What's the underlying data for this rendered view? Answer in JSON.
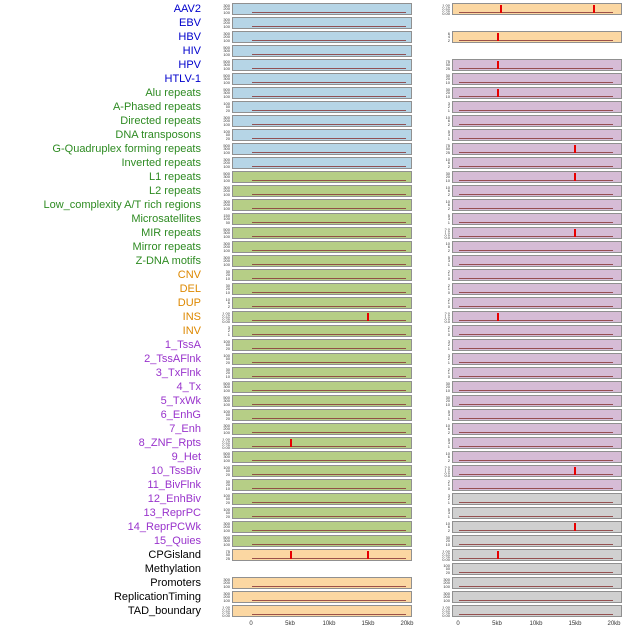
{
  "figure": {
    "label_colors": {
      "virus": "#0000CC",
      "repeat": "#2E8B22",
      "sv": "#DD8800",
      "chromatin": "#9933CC",
      "other": "#000000"
    },
    "panel_colors": {
      "blue": "#B6D5E6",
      "green": "#B6CE86",
      "peach": "#FBD7A2",
      "purple": "#D6BCD6",
      "gray": "#D0D0D0"
    },
    "accent_colors": {
      "peak": "#E80000",
      "baseline": "#8B3A3A"
    }
  },
  "chart_data": {
    "type": "area",
    "title": "",
    "xlabel": "",
    "ylabel": "",
    "x_ticks": [
      "0",
      "5kb",
      "10kb",
      "15kb",
      "20kb"
    ],
    "x_range_kb": [
      0,
      20
    ],
    "columns": [
      "left",
      "right"
    ],
    "legend_position": "none",
    "grid": false,
    "rows": [
      {
        "label": "AAV2",
        "cat": "virus",
        "L": {
          "bg": "blue",
          "ticks": [
            "300",
            "200",
            "100"
          ],
          "spikes": []
        },
        "R": {
          "bg": "peach",
          "ticks": [
            "1.00",
            "0.75",
            "0.50",
            "0.25",
            "0.00"
          ],
          "spikes": [
            5.5,
            17.5
          ]
        }
      },
      {
        "label": "EBV",
        "cat": "virus",
        "L": {
          "bg": "blue",
          "ticks": [
            "300",
            "200",
            "100"
          ],
          "spikes": []
        },
        "R": null
      },
      {
        "label": "HBV",
        "cat": "virus",
        "L": {
          "bg": "blue",
          "ticks": [
            "300",
            "200",
            "100"
          ],
          "spikes": []
        },
        "R": {
          "bg": "peach",
          "ticks": [
            "6",
            "4",
            "2"
          ],
          "spikes": [
            5
          ]
        }
      },
      {
        "label": "HIV",
        "cat": "virus",
        "L": {
          "bg": "blue",
          "ticks": [
            "500",
            "300",
            "100"
          ],
          "spikes": []
        },
        "R": null
      },
      {
        "label": "HPV",
        "cat": "virus",
        "L": {
          "bg": "blue",
          "ticks": [
            "500",
            "300",
            "100"
          ],
          "spikes": []
        },
        "R": {
          "bg": "purple",
          "ticks": [
            "75",
            "50",
            "25"
          ],
          "spikes": [
            5
          ]
        }
      },
      {
        "label": "HTLV-1",
        "cat": "virus",
        "L": {
          "bg": "blue",
          "ticks": [
            "500",
            "300",
            "100"
          ],
          "spikes": []
        },
        "R": {
          "bg": "purple",
          "ticks": [
            "30",
            "20",
            "10"
          ],
          "spikes": []
        }
      },
      {
        "label": "Alu repeats",
        "cat": "repeat",
        "L": {
          "bg": "blue",
          "ticks": [
            "500",
            "300",
            "100"
          ],
          "spikes": []
        },
        "R": {
          "bg": "purple",
          "ticks": [
            "30",
            "20",
            "10"
          ],
          "spikes": [
            5
          ]
        }
      },
      {
        "label": "A-Phased repeats",
        "cat": "repeat",
        "L": {
          "bg": "blue",
          "ticks": [
            "100",
            "60",
            "20"
          ],
          "spikes": []
        },
        "R": {
          "bg": "purple",
          "ticks": [
            "3",
            "2",
            "1"
          ],
          "spikes": []
        }
      },
      {
        "label": "Directed repeats",
        "cat": "repeat",
        "L": {
          "bg": "blue",
          "ticks": [
            "300",
            "200",
            "100"
          ],
          "spikes": []
        },
        "R": {
          "bg": "purple",
          "ticks": [
            "10",
            "6",
            "2"
          ],
          "spikes": []
        }
      },
      {
        "label": "DNA transposons",
        "cat": "repeat",
        "L": {
          "bg": "blue",
          "ticks": [
            "100",
            "60",
            "20"
          ],
          "spikes": []
        },
        "R": {
          "bg": "purple",
          "ticks": [
            "5",
            "3",
            "1"
          ],
          "spikes": []
        }
      },
      {
        "label": "G-Quadruplex forming repeats",
        "cat": "repeat",
        "L": {
          "bg": "blue",
          "ticks": [
            "500",
            "300",
            "100"
          ],
          "spikes": []
        },
        "R": {
          "bg": "purple",
          "ticks": [
            "75",
            "50",
            "25"
          ],
          "spikes": [
            15
          ]
        }
      },
      {
        "label": "Inverted repeats",
        "cat": "repeat",
        "L": {
          "bg": "blue",
          "ticks": [
            "300",
            "200",
            "100"
          ],
          "spikes": []
        },
        "R": {
          "bg": "purple",
          "ticks": [
            "10",
            "6",
            "2"
          ],
          "spikes": []
        }
      },
      {
        "label": "L1 repeats",
        "cat": "repeat",
        "L": {
          "bg": "green",
          "ticks": [
            "500",
            "300",
            "100"
          ],
          "spikes": []
        },
        "R": {
          "bg": "purple",
          "ticks": [
            "30",
            "20",
            "10"
          ],
          "spikes": [
            15
          ]
        }
      },
      {
        "label": "L2 repeats",
        "cat": "repeat",
        "L": {
          "bg": "green",
          "ticks": [
            "300",
            "200",
            "100"
          ],
          "spikes": []
        },
        "R": {
          "bg": "purple",
          "ticks": [
            "10",
            "6",
            "2"
          ],
          "spikes": []
        }
      },
      {
        "label": "Low_complexity A/T rich regions",
        "cat": "repeat",
        "L": {
          "bg": "green",
          "ticks": [
            "300",
            "200",
            "100"
          ],
          "spikes": []
        },
        "R": {
          "bg": "purple",
          "ticks": [
            "10",
            "6",
            "2"
          ],
          "spikes": []
        }
      },
      {
        "label": "Microsatellites",
        "cat": "repeat",
        "L": {
          "bg": "green",
          "ticks": [
            "150",
            "100",
            "50"
          ],
          "spikes": []
        },
        "R": {
          "bg": "purple",
          "ticks": [
            "5",
            "3",
            "1"
          ],
          "spikes": []
        }
      },
      {
        "label": "MIR repeats",
        "cat": "repeat",
        "L": {
          "bg": "green",
          "ticks": [
            "500",
            "300",
            "100"
          ],
          "spikes": []
        },
        "R": {
          "bg": "purple",
          "ticks": [
            "2.0",
            "1.5",
            "1.0",
            "0.5",
            "0.0"
          ],
          "spikes": [
            15
          ]
        }
      },
      {
        "label": "Mirror repeats",
        "cat": "repeat",
        "L": {
          "bg": "green",
          "ticks": [
            "300",
            "200",
            "100"
          ],
          "spikes": []
        },
        "R": {
          "bg": "purple",
          "ticks": [
            "10",
            "6",
            "2"
          ],
          "spikes": []
        }
      },
      {
        "label": "Z-DNA motifs",
        "cat": "repeat",
        "L": {
          "bg": "green",
          "ticks": [
            "300",
            "200",
            "100"
          ],
          "spikes": []
        },
        "R": {
          "bg": "purple",
          "ticks": [
            "5",
            "3",
            "1"
          ],
          "spikes": []
        }
      },
      {
        "label": "CNV",
        "cat": "sv",
        "L": {
          "bg": "green",
          "ticks": [
            "30",
            "20",
            "10"
          ],
          "spikes": []
        },
        "R": {
          "bg": "purple",
          "ticks": [
            "2",
            "1",
            "0"
          ],
          "spikes": []
        }
      },
      {
        "label": "DEL",
        "cat": "sv",
        "L": {
          "bg": "green",
          "ticks": [
            "30",
            "20",
            "10"
          ],
          "spikes": []
        },
        "R": {
          "bg": "purple",
          "ticks": [
            "2",
            "1",
            "0"
          ],
          "spikes": []
        }
      },
      {
        "label": "DUP",
        "cat": "sv",
        "L": {
          "bg": "green",
          "ticks": [
            "10",
            "6",
            "2"
          ],
          "spikes": []
        },
        "R": {
          "bg": "purple",
          "ticks": [
            "2",
            "1",
            "0"
          ],
          "spikes": []
        }
      },
      {
        "label": "INS",
        "cat": "sv",
        "L": {
          "bg": "green",
          "ticks": [
            "1.00",
            "0.75",
            "0.50",
            "0.25",
            "0.00"
          ],
          "spikes": [
            15
          ]
        },
        "R": {
          "bg": "purple",
          "ticks": [
            "2.0",
            "1.5",
            "1.0",
            "0.5",
            "0.0"
          ],
          "spikes": [
            5
          ]
        }
      },
      {
        "label": "INV",
        "cat": "sv",
        "L": {
          "bg": "green",
          "ticks": [
            "3",
            "2",
            "1"
          ],
          "spikes": []
        },
        "R": {
          "bg": "purple",
          "ticks": [
            "2",
            "1",
            "0"
          ],
          "spikes": []
        }
      },
      {
        "label": "1_TssA",
        "cat": "chromatin",
        "L": {
          "bg": "green",
          "ticks": [
            "100",
            "60",
            "20"
          ],
          "spikes": []
        },
        "R": {
          "bg": "purple",
          "ticks": [
            "3",
            "2",
            "1"
          ],
          "spikes": []
        }
      },
      {
        "label": "2_TssAFlnk",
        "cat": "chromatin",
        "L": {
          "bg": "green",
          "ticks": [
            "100",
            "60",
            "20"
          ],
          "spikes": []
        },
        "R": {
          "bg": "purple",
          "ticks": [
            "3",
            "2",
            "1"
          ],
          "spikes": []
        }
      },
      {
        "label": "3_TxFlnk",
        "cat": "chromatin",
        "L": {
          "bg": "green",
          "ticks": [
            "30",
            "20",
            "10"
          ],
          "spikes": []
        },
        "R": {
          "bg": "purple",
          "ticks": [
            "2",
            "1",
            "0"
          ],
          "spikes": []
        }
      },
      {
        "label": "4_Tx",
        "cat": "chromatin",
        "L": {
          "bg": "green",
          "ticks": [
            "500",
            "300",
            "100"
          ],
          "spikes": []
        },
        "R": {
          "bg": "purple",
          "ticks": [
            "30",
            "20",
            "10"
          ],
          "spikes": []
        }
      },
      {
        "label": "5_TxWk",
        "cat": "chromatin",
        "L": {
          "bg": "green",
          "ticks": [
            "500",
            "300",
            "100"
          ],
          "spikes": []
        },
        "R": {
          "bg": "purple",
          "ticks": [
            "30",
            "20",
            "10"
          ],
          "spikes": []
        }
      },
      {
        "label": "6_EnhG",
        "cat": "chromatin",
        "L": {
          "bg": "green",
          "ticks": [
            "100",
            "60",
            "20"
          ],
          "spikes": []
        },
        "R": {
          "bg": "purple",
          "ticks": [
            "5",
            "3",
            "1"
          ],
          "spikes": []
        }
      },
      {
        "label": "7_Enh",
        "cat": "chromatin",
        "L": {
          "bg": "green",
          "ticks": [
            "300",
            "200",
            "100"
          ],
          "spikes": []
        },
        "R": {
          "bg": "purple",
          "ticks": [
            "10",
            "6",
            "2"
          ],
          "spikes": []
        }
      },
      {
        "label": "8_ZNF_Rpts",
        "cat": "chromatin",
        "L": {
          "bg": "green",
          "ticks": [
            "1.00",
            "0.75",
            "0.50",
            "0.25",
            "0.00"
          ],
          "spikes": [
            5
          ]
        },
        "R": {
          "bg": "purple",
          "ticks": [
            "5",
            "3",
            "1"
          ],
          "spikes": []
        }
      },
      {
        "label": "9_Het",
        "cat": "chromatin",
        "L": {
          "bg": "green",
          "ticks": [
            "500",
            "300",
            "100"
          ],
          "spikes": []
        },
        "R": {
          "bg": "purple",
          "ticks": [
            "10",
            "6",
            "2"
          ],
          "spikes": []
        }
      },
      {
        "label": "10_TssBiv",
        "cat": "chromatin",
        "L": {
          "bg": "green",
          "ticks": [
            "100",
            "60",
            "20"
          ],
          "spikes": []
        },
        "R": {
          "bg": "purple",
          "ticks": [
            "2.0",
            "1.5",
            "1.0",
            "0.5",
            "0.0"
          ],
          "spikes": [
            15
          ]
        }
      },
      {
        "label": "11_BivFlnk",
        "cat": "chromatin",
        "L": {
          "bg": "green",
          "ticks": [
            "30",
            "20",
            "10"
          ],
          "spikes": []
        },
        "R": {
          "bg": "purple",
          "ticks": [
            "2",
            "1",
            "0"
          ],
          "spikes": []
        }
      },
      {
        "label": "12_EnhBiv",
        "cat": "chromatin",
        "L": {
          "bg": "green",
          "ticks": [
            "100",
            "60",
            "20"
          ],
          "spikes": []
        },
        "R": {
          "bg": "gray",
          "ticks": [
            "3",
            "2",
            "1"
          ],
          "spikes": []
        }
      },
      {
        "label": "13_ReprPC",
        "cat": "chromatin",
        "L": {
          "bg": "green",
          "ticks": [
            "100",
            "60",
            "20"
          ],
          "spikes": []
        },
        "R": {
          "bg": "gray",
          "ticks": [
            "5",
            "3",
            "1"
          ],
          "spikes": []
        }
      },
      {
        "label": "14_ReprPCWk",
        "cat": "chromatin",
        "L": {
          "bg": "green",
          "ticks": [
            "300",
            "200",
            "100"
          ],
          "spikes": []
        },
        "R": {
          "bg": "gray",
          "ticks": [
            "10",
            "6",
            "2"
          ],
          "spikes": [
            15
          ]
        }
      },
      {
        "label": "15_Quies",
        "cat": "chromatin",
        "L": {
          "bg": "green",
          "ticks": [
            "500",
            "300",
            "100"
          ],
          "spikes": []
        },
        "R": {
          "bg": "gray",
          "ticks": [
            "30",
            "20",
            "10"
          ],
          "spikes": []
        }
      },
      {
        "label": "CPGisland",
        "cat": "other",
        "L": {
          "bg": "peach",
          "ticks": [
            "75",
            "50",
            "25"
          ],
          "spikes": [
            5,
            15
          ]
        },
        "R": {
          "bg": "gray",
          "ticks": [
            "1.00",
            "0.75",
            "0.50",
            "0.25",
            "0.00"
          ],
          "spikes": [
            5
          ]
        }
      },
      {
        "label": "Methylation",
        "cat": "other",
        "L": null,
        "R": {
          "bg": "gray",
          "ticks": [
            "100",
            "60",
            "20"
          ],
          "spikes": []
        }
      },
      {
        "label": "Promoters",
        "cat": "other",
        "L": {
          "bg": "peach",
          "ticks": [
            "300",
            "200",
            "100"
          ],
          "spikes": []
        },
        "R": {
          "bg": "gray",
          "ticks": [
            "300",
            "200",
            "100"
          ],
          "spikes": []
        }
      },
      {
        "label": "ReplicationTiming",
        "cat": "other",
        "L": {
          "bg": "peach",
          "ticks": [
            "300",
            "200",
            "100"
          ],
          "spikes": []
        },
        "R": {
          "bg": "gray",
          "ticks": [
            "300",
            "200",
            "100"
          ],
          "spikes": []
        }
      },
      {
        "label": "TAD_boundary",
        "cat": "other",
        "L": {
          "bg": "peach",
          "ticks": [
            "1.00",
            "0.75",
            "0.50",
            "0.25",
            "0.00"
          ],
          "spikes": []
        },
        "R": {
          "bg": "gray",
          "ticks": [
            "1.00",
            "0.75",
            "0.50",
            "0.25",
            "0.00"
          ],
          "spikes": []
        }
      }
    ]
  }
}
